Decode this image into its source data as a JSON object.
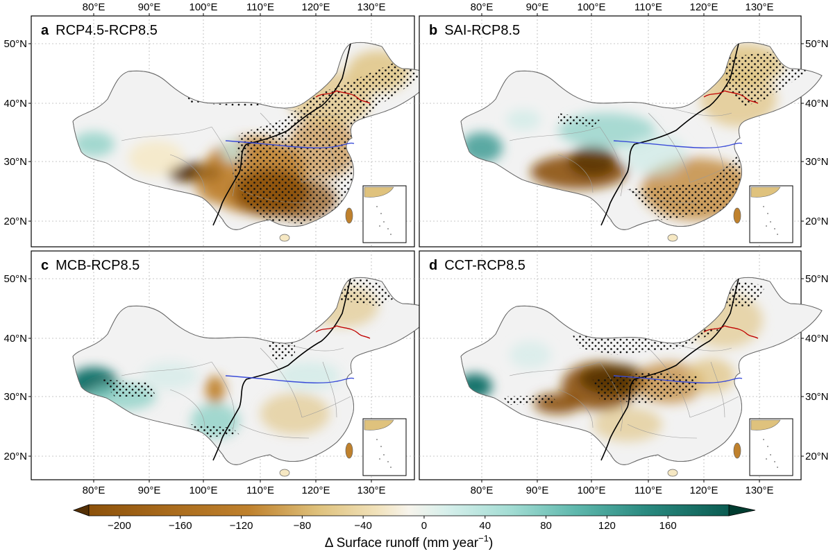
{
  "figure": {
    "lon_ticks": [
      "80°E",
      "90°E",
      "100°E",
      "110°E",
      "120°E",
      "130°E"
    ],
    "lat_ticks": [
      "20°N",
      "30°N",
      "40°N",
      "50°N"
    ],
    "lon_values": [
      80,
      90,
      100,
      110,
      120,
      130
    ],
    "lat_values": [
      20,
      30,
      40,
      50
    ],
    "panels": [
      {
        "letter": "a",
        "title": "RCP4.5-RCP8.5",
        "scenario": "rcp45"
      },
      {
        "letter": "b",
        "title": "SAI-RCP8.5",
        "scenario": "sai"
      },
      {
        "letter": "c",
        "title": "MCB-RCP8.5",
        "scenario": "mcb"
      },
      {
        "letter": "d",
        "title": "CCT-RCP8.5",
        "scenario": "cct"
      }
    ]
  },
  "colorbar": {
    "label_main": "Δ Surface runoff (mm year",
    "label_exp": "−1",
    "label_close": ")",
    "ticks": [
      "−200",
      "−160",
      "−120",
      "−80",
      "−40",
      "0",
      "40",
      "80",
      "120",
      "160"
    ],
    "tick_values": [
      -200,
      -160,
      -120,
      -80,
      -40,
      0,
      40,
      80,
      120,
      160
    ],
    "range": [
      -220,
      200
    ],
    "extend": "both"
  },
  "colors": {
    "brown_dark": "#543005",
    "brown": "#8c510a",
    "tan": "#bf812d",
    "tan_light": "#dfc27d",
    "beige": "#f6e8c3",
    "neutral": "#f2f2f2",
    "mint": "#c7eae5",
    "teal_light": "#80cdc1",
    "teal": "#35978f",
    "teal_dark": "#01665e",
    "teal_darkest": "#003c30",
    "yellow_river": "#3a4bd8",
    "boundary_red": "#c00000",
    "divide_line": "#000000"
  }
}
